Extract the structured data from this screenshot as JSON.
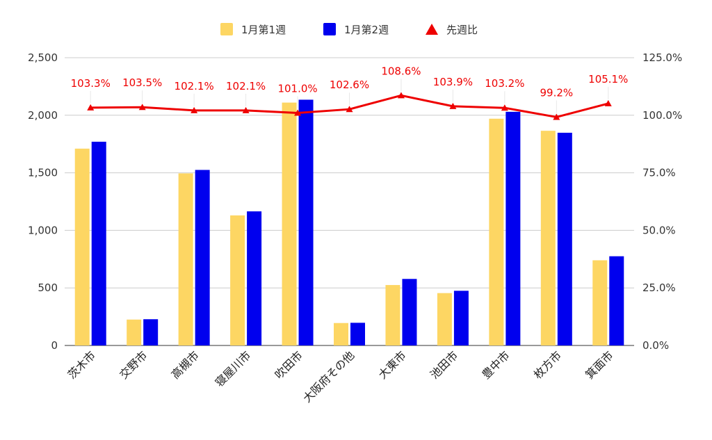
{
  "chart_data": {
    "type": "bar",
    "categories": [
      "茨木市",
      "交野市",
      "高槻市",
      "寝屋川市",
      "吹田市",
      "大阪府その他",
      "大東市",
      "池田市",
      "豊中市",
      "枚方市",
      "箕面市"
    ],
    "series": [
      {
        "name": "1月第1週",
        "type": "bar",
        "axis": "left",
        "color": "#FDD663",
        "values": [
          1710,
          225,
          1495,
          1130,
          2110,
          195,
          525,
          455,
          1970,
          1865,
          740
        ]
      },
      {
        "name": "1月第2週",
        "type": "bar",
        "axis": "left",
        "color": "#0000EE",
        "values": [
          1770,
          228,
          1525,
          1165,
          2135,
          197,
          578,
          475,
          2030,
          1848,
          775
        ]
      },
      {
        "name": "先週比",
        "type": "line",
        "axis": "right",
        "color": "#EE0000",
        "marker": "triangle",
        "values": [
          103.3,
          103.5,
          102.1,
          102.1,
          101.0,
          102.6,
          108.6,
          103.9,
          103.2,
          99.2,
          105.1
        ],
        "labels": [
          "103.3%",
          "103.5%",
          "102.1%",
          "102.1%",
          "101.0%",
          "102.6%",
          "108.6%",
          "103.9%",
          "103.2%",
          "99.2%",
          "105.1%"
        ]
      }
    ],
    "y_left": {
      "min": 0,
      "max": 2500,
      "ticks": [
        "0",
        "500",
        "1,000",
        "1,500",
        "2,000",
        "2,500"
      ]
    },
    "y_right": {
      "min": 0,
      "max": 125,
      "ticks": [
        "0.0%",
        "25.0%",
        "50.0%",
        "75.0%",
        "100.0%",
        "125.0%"
      ]
    },
    "grid": true,
    "legend_position": "top-center"
  }
}
